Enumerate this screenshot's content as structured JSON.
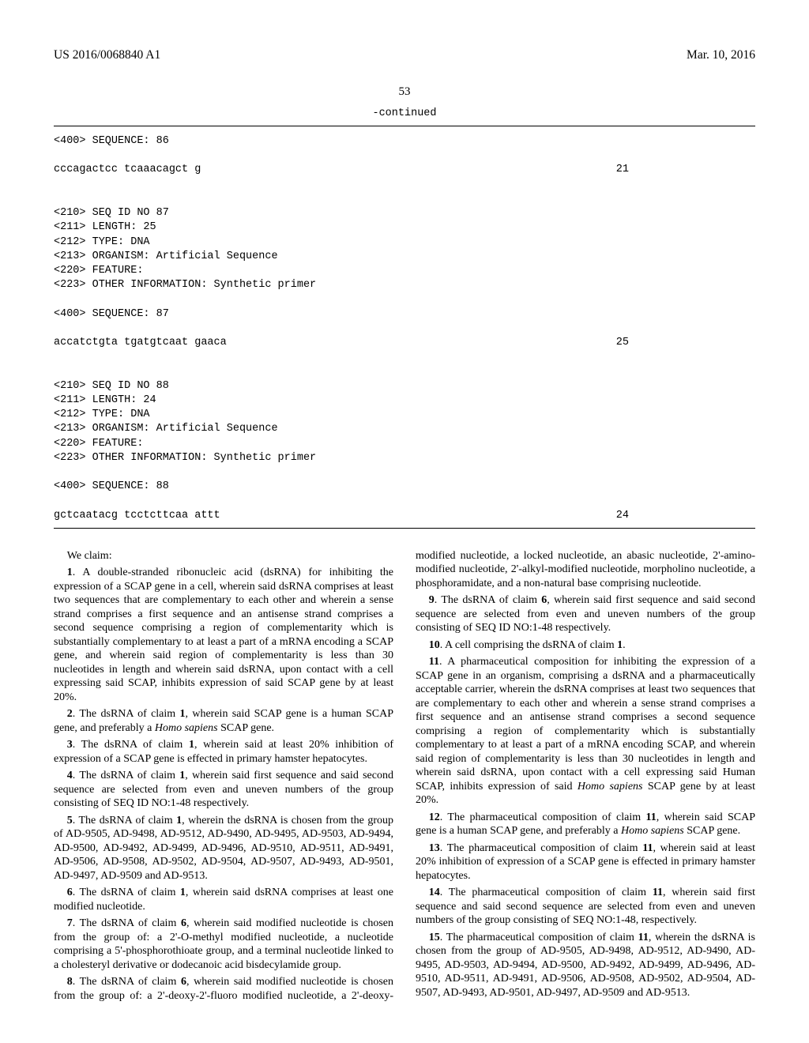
{
  "header": {
    "pub_number": "US 2016/0068840 A1",
    "pub_date": "Mar. 10, 2016"
  },
  "page_number": "53",
  "continued_label": "-continued",
  "seq_section": {
    "entries": [
      {
        "lines_pre": [
          "<400> SEQUENCE: 86"
        ],
        "seq_text": "cccagactcc tcaaacagct g",
        "seq_len": "21"
      },
      {
        "lines_pre": [
          "<210> SEQ ID NO 87",
          "<211> LENGTH: 25",
          "<212> TYPE: DNA",
          "<213> ORGANISM: Artificial Sequence",
          "<220> FEATURE:",
          "<223> OTHER INFORMATION: Synthetic primer",
          "",
          "<400> SEQUENCE: 87"
        ],
        "seq_text": "accatctgta tgatgtcaat gaaca",
        "seq_len": "25"
      },
      {
        "lines_pre": [
          "<210> SEQ ID NO 88",
          "<211> LENGTH: 24",
          "<212> TYPE: DNA",
          "<213> ORGANISM: Artificial Sequence",
          "<220> FEATURE:",
          "<223> OTHER INFORMATION: Synthetic primer",
          "",
          "<400> SEQUENCE: 88"
        ],
        "seq_text": "gctcaatacg tcctcttcaa attt",
        "seq_len": "24"
      }
    ]
  },
  "we_claim": "We claim:",
  "claims": [
    {
      "n": "1",
      "body": ". A double-stranded ribonucleic acid (dsRNA) for inhibiting the expression of a SCAP gene in a cell, wherein said dsRNA comprises at least two sequences that are complementary to each other and wherein a sense strand comprises a first sequence and an antisense strand comprises a second sequence comprising a region of complementarity which is substantially complementary to at least a part of a mRNA encoding a SCAP gene, and wherein said region of complementarity is less than 30 nucleotides in length and wherein said dsRNA, upon contact with a cell expressing said SCAP, inhibits expression of said SCAP gene by at least 20%."
    },
    {
      "n": "2",
      "body": ". The dsRNA of claim ",
      "ref": "1",
      "tail": ", wherein said SCAP gene is a human SCAP gene, and preferably a ",
      "italic": "Homo sapiens",
      "tail2": " SCAP gene."
    },
    {
      "n": "3",
      "body": ". The dsRNA of claim ",
      "ref": "1",
      "tail": ", wherein said at least 20% inhibition of expression of a SCAP gene is effected in primary hamster hepatocytes."
    },
    {
      "n": "4",
      "body": ". The dsRNA of claim ",
      "ref": "1",
      "tail": ", wherein said first sequence and said second sequence are selected from even and uneven numbers of the group consisting of SEQ ID NO:1-48 respectively."
    },
    {
      "n": "5",
      "body": ". The dsRNA of claim ",
      "ref": "1",
      "tail": ", wherein the dsRNA is chosen from the group of AD-9505, AD-9498, AD-9512, AD-9490, AD-9495, AD-9503, AD-9494, AD-9500, AD-9492, AD-9499, AD-9496, AD-9510, AD-9511, AD-9491, AD-9506, AD-9508, AD-9502, AD-9504, AD-9507, AD-9493, AD-9501, AD-9497, AD-9509 and AD-9513."
    },
    {
      "n": "6",
      "body": ". The dsRNA of claim ",
      "ref": "1",
      "tail": ", wherein said dsRNA comprises at least one modified nucleotide."
    },
    {
      "n": "7",
      "body": ". The dsRNA of claim ",
      "ref": "6",
      "tail": ", wherein said modified nucleotide is chosen from the group of: a 2'-O-methyl modified nucleotide, a nucleotide comprising a 5'-phosphorothioate group, and a terminal nucleotide linked to a cholesteryl derivative or dodecanoic acid bisdecylamide group."
    },
    {
      "n": "8",
      "body": ". The dsRNA of claim ",
      "ref": "6",
      "tail": ", wherein said modified nucleotide is chosen from the group of: a 2'-deoxy-2'-fluoro modified nucleotide, a 2'-deoxy-modified nucleotide, a locked nucleotide, an abasic nucleotide, 2'-amino-modified nucleotide, 2'-alkyl-modified nucleotide, morpholino nucleotide, a phosphoramidate, and a non-natural base comprising nucleotide."
    },
    {
      "n": "9",
      "body": ". The dsRNA of claim ",
      "ref": "6",
      "tail": ", wherein said first sequence and said second sequence are selected from even and uneven numbers of the group consisting of SEQ ID NO:1-48 respectively."
    },
    {
      "n": "10",
      "body": ". A cell comprising the dsRNA of claim ",
      "ref": "1",
      "tail": "."
    },
    {
      "n": "11",
      "body": ". A pharmaceutical composition for inhibiting the expression of a SCAP gene in an organism, comprising a dsRNA and a pharmaceutically acceptable carrier, wherein the dsRNA comprises at least two sequences that are complementary to each other and wherein a sense strand comprises a first sequence and an antisense strand comprises a second sequence comprising a region of complementarity which is substantially complementary to at least a part of a mRNA encoding SCAP, and wherein said region of complementarity is less than 30 nucleotides in length and wherein said dsRNA, upon contact with a cell expressing said Human SCAP, inhibits expression of said ",
      "italic": "Homo sapiens",
      "tail2": " SCAP gene by at least 20%."
    },
    {
      "n": "12",
      "body": ". The pharmaceutical composition of claim ",
      "ref": "11",
      "tail": ", wherein said SCAP gene is a human SCAP gene, and preferably a ",
      "italic": "Homo sapiens",
      "tail2": " SCAP gene."
    },
    {
      "n": "13",
      "body": ". The pharmaceutical composition of claim ",
      "ref": "11",
      "tail": ", wherein said at least 20% inhibition of expression of a SCAP gene is effected in primary hamster hepatocytes."
    },
    {
      "n": "14",
      "body": ". The pharmaceutical composition of claim ",
      "ref": "11",
      "tail": ", wherein said first sequence and said second sequence are selected from even and uneven numbers of the group consisting of SEQ NO:1-48, respectively."
    },
    {
      "n": "15",
      "body": ". The pharmaceutical composition of claim ",
      "ref": "11",
      "tail": ", wherein the dsRNA is chosen from the group of AD-9505, AD-9498, AD-9512, AD-9490, AD-9495, AD-9503, AD-9494, AD-9500, AD-9492, AD-9499, AD-9496, AD-9510, AD-9511, AD-9491, AD-9506, AD-9508, AD-9502, AD-9504, AD-9507, AD-9493, AD-9501, AD-9497, AD-9509 and AD-9513."
    }
  ]
}
